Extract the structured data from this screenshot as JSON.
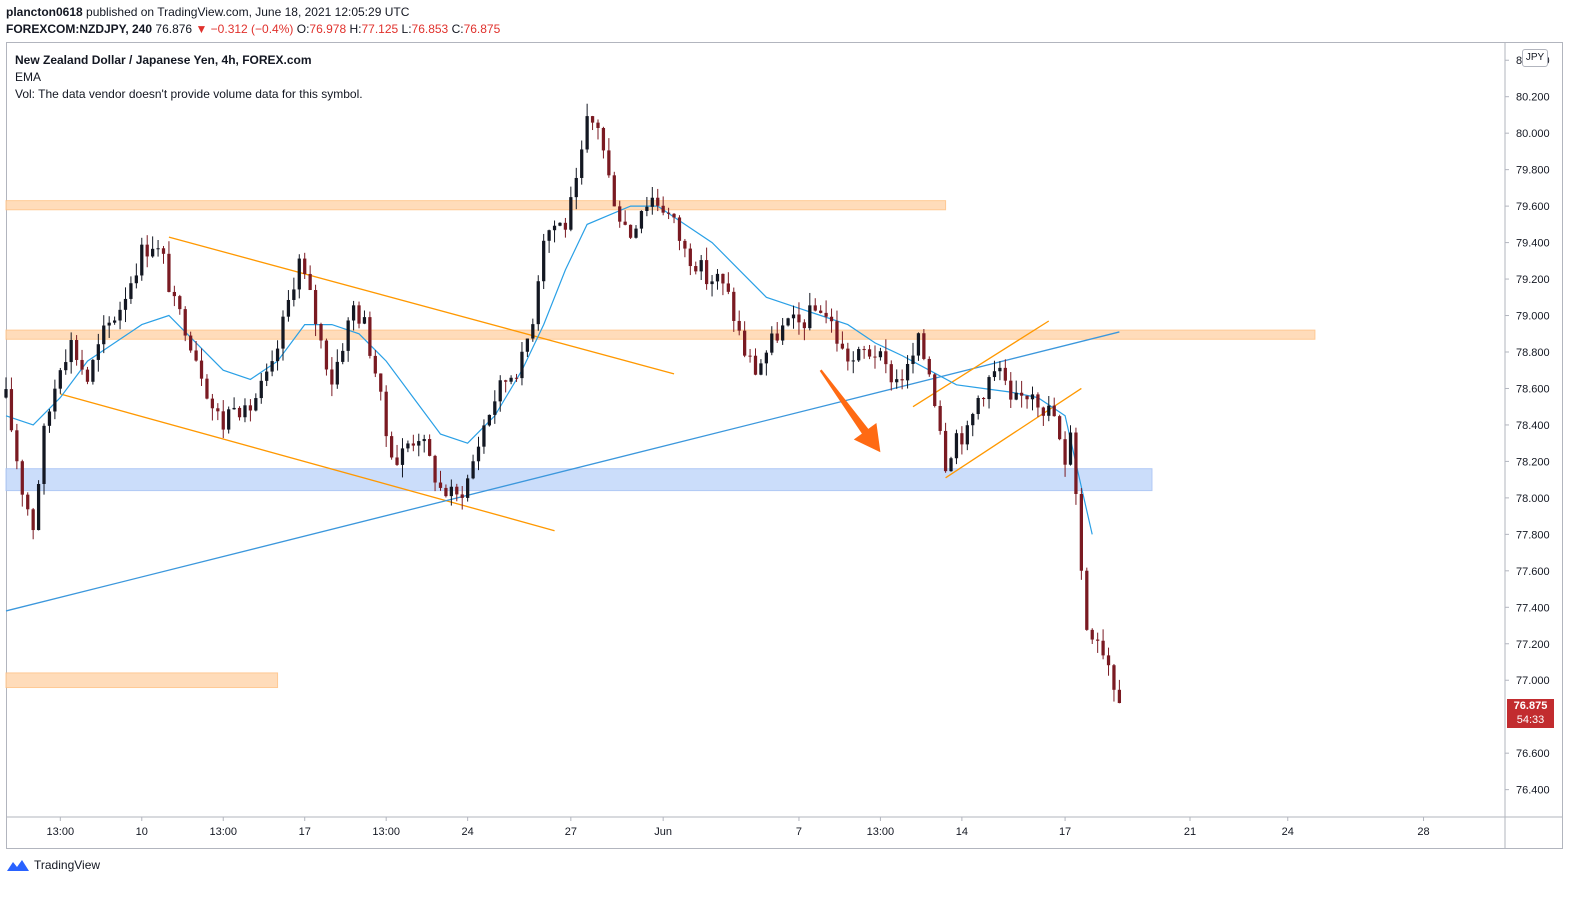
{
  "header": {
    "user": "plancton0618",
    "published_text": " published on TradingView.com, June 18, 2021 12:05:29 UTC",
    "symbol": "FOREXCOM:NZDJPY, 240",
    "last": "76.876",
    "change": "−0.312 (−0.4%)",
    "o_label": "O:",
    "o_value": "76.978",
    "h_label": "H:",
    "h_value": "77.125",
    "l_label": "L:",
    "l_value": "76.853",
    "c_label": "C:",
    "c_value": "76.875"
  },
  "legend": {
    "title": "New Zealand Dollar / Japanese Yen, 4h, FOREX.com",
    "indicator": "EMA",
    "volume_note": "Vol: The data vendor doesn't provide volume data for this symbol."
  },
  "currency_badge": "JPY",
  "last_price_label": {
    "price": "76.875",
    "countdown": "54:33"
  },
  "footer": {
    "brand": "TradingView"
  },
  "colors": {
    "bull": "#131722",
    "bear": "#7a1a22",
    "ema": "#2aa0e6",
    "trendline_orange": "#ff9800",
    "trendline_blue": "#3b97dc",
    "zone_orange": "#ffd9b3",
    "zone_blue": "#c6dafa",
    "arrow": "#ff6a13",
    "last_price_bg": "#c22c2f"
  },
  "chart_data": {
    "type": "candlestick",
    "symbol": "NZDJPY",
    "timeframe": "4h",
    "ylim": [
      76.25,
      80.5
    ],
    "yticks": [
      76.4,
      76.6,
      77.0,
      77.2,
      77.4,
      77.6,
      77.8,
      78.0,
      78.2,
      78.4,
      78.6,
      78.8,
      79.0,
      79.2,
      79.4,
      79.6,
      79.8,
      80.0,
      80.2,
      80.4
    ],
    "ytick_labels": [
      "76.400",
      "76.600",
      "77.000",
      "77.200",
      "77.400",
      "77.600",
      "77.800",
      "78.000",
      "78.200",
      "78.400",
      "78.600",
      "78.800",
      "79.000",
      "79.200",
      "79.400",
      "79.600",
      "79.800",
      "80.000",
      "80.200",
      "80.400"
    ],
    "xlim": [
      0,
      276
    ],
    "xticks": [
      {
        "pos": 10,
        "label": "13:00"
      },
      {
        "pos": 25,
        "label": "10"
      },
      {
        "pos": 40,
        "label": "13:00"
      },
      {
        "pos": 55,
        "label": "17"
      },
      {
        "pos": 70,
        "label": "13:00"
      },
      {
        "pos": 85,
        "label": "24"
      },
      {
        "pos": 104,
        "label": "27"
      },
      {
        "pos": 121,
        "label": "Jun"
      },
      {
        "pos": 146,
        "label": "7"
      },
      {
        "pos": 161,
        "label": "13:00"
      },
      {
        "pos": 176,
        "label": "14"
      },
      {
        "pos": 195,
        "label": "17"
      },
      {
        "pos": 218,
        "label": "21"
      },
      {
        "pos": 236,
        "label": "24"
      },
      {
        "pos": 261,
        "label": "28"
      }
    ],
    "anchors": [
      [
        0,
        78.55
      ],
      [
        3,
        78.05
      ],
      [
        5,
        77.85
      ],
      [
        7,
        78.35
      ],
      [
        10,
        78.75
      ],
      [
        12,
        78.85
      ],
      [
        15,
        78.65
      ],
      [
        18,
        78.9
      ],
      [
        21,
        79.05
      ],
      [
        23,
        79.2
      ],
      [
        25,
        79.35
      ],
      [
        27,
        79.4
      ],
      [
        29,
        79.3
      ],
      [
        31,
        79.05
      ],
      [
        33,
        78.95
      ],
      [
        36,
        78.7
      ],
      [
        38,
        78.5
      ],
      [
        40,
        78.4
      ],
      [
        42,
        78.55
      ],
      [
        44,
        78.45
      ],
      [
        47,
        78.6
      ],
      [
        49,
        78.7
      ],
      [
        51,
        78.95
      ],
      [
        53,
        79.2
      ],
      [
        54,
        79.3
      ],
      [
        56,
        79.1
      ],
      [
        58,
        78.85
      ],
      [
        60,
        78.65
      ],
      [
        62,
        78.85
      ],
      [
        64,
        79.05
      ],
      [
        66,
        78.95
      ],
      [
        68,
        78.7
      ],
      [
        70,
        78.35
      ],
      [
        72,
        78.2
      ],
      [
        74,
        78.3
      ],
      [
        76,
        78.35
      ],
      [
        78,
        78.2
      ],
      [
        80,
        78.05
      ],
      [
        83,
        78.0
      ],
      [
        85,
        78.1
      ],
      [
        88,
        78.4
      ],
      [
        90,
        78.55
      ],
      [
        92,
        78.65
      ],
      [
        95,
        78.75
      ],
      [
        97,
        79.0
      ],
      [
        99,
        79.45
      ],
      [
        101,
        79.5
      ],
      [
        103,
        79.5
      ],
      [
        105,
        79.7
      ],
      [
        107,
        80.05
      ],
      [
        109,
        80.05
      ],
      [
        111,
        79.75
      ],
      [
        113,
        79.55
      ],
      [
        115,
        79.45
      ],
      [
        117,
        79.6
      ],
      [
        119,
        79.65
      ],
      [
        121,
        79.6
      ],
      [
        123,
        79.5
      ],
      [
        125,
        79.35
      ],
      [
        127,
        79.3
      ],
      [
        129,
        79.2
      ],
      [
        131,
        79.2
      ],
      [
        133,
        79.1
      ],
      [
        136,
        78.8
      ],
      [
        138,
        78.7
      ],
      [
        140,
        78.8
      ],
      [
        142,
        78.9
      ],
      [
        144,
        78.95
      ],
      [
        146,
        78.95
      ],
      [
        148,
        79.0
      ],
      [
        150,
        79.05
      ],
      [
        152,
        78.95
      ],
      [
        154,
        78.8
      ],
      [
        156,
        78.75
      ],
      [
        158,
        78.8
      ],
      [
        160,
        78.8
      ],
      [
        162,
        78.7
      ],
      [
        164,
        78.65
      ],
      [
        166,
        78.7
      ],
      [
        168,
        78.85
      ],
      [
        170,
        78.7
      ],
      [
        171,
        78.55
      ],
      [
        172,
        78.4
      ],
      [
        173,
        78.2
      ],
      [
        175,
        78.35
      ],
      [
        177,
        78.35
      ],
      [
        179,
        78.55
      ],
      [
        181,
        78.65
      ],
      [
        183,
        78.7
      ],
      [
        185,
        78.5
      ],
      [
        187,
        78.55
      ],
      [
        189,
        78.6
      ],
      [
        191,
        78.5
      ],
      [
        193,
        78.45
      ],
      [
        194,
        78.3
      ],
      [
        195,
        78.15
      ],
      [
        196,
        78.4
      ],
      [
        197,
        78.05
      ],
      [
        198,
        77.6
      ],
      [
        199,
        77.3
      ],
      [
        201,
        77.25
      ],
      [
        203,
        77.1
      ],
      [
        205,
        76.875
      ]
    ],
    "ema_line": [
      [
        0,
        78.45
      ],
      [
        5,
        78.4
      ],
      [
        10,
        78.55
      ],
      [
        15,
        78.75
      ],
      [
        20,
        78.85
      ],
      [
        25,
        78.95
      ],
      [
        30,
        79.0
      ],
      [
        35,
        78.85
      ],
      [
        40,
        78.7
      ],
      [
        45,
        78.65
      ],
      [
        50,
        78.75
      ],
      [
        55,
        78.95
      ],
      [
        60,
        78.95
      ],
      [
        65,
        78.9
      ],
      [
        70,
        78.75
      ],
      [
        75,
        78.55
      ],
      [
        80,
        78.35
      ],
      [
        85,
        78.3
      ],
      [
        90,
        78.45
      ],
      [
        95,
        78.7
      ],
      [
        99,
        78.95
      ],
      [
        103,
        79.25
      ],
      [
        107,
        79.5
      ],
      [
        111,
        79.55
      ],
      [
        115,
        79.6
      ],
      [
        120,
        79.6
      ],
      [
        125,
        79.5
      ],
      [
        130,
        79.4
      ],
      [
        135,
        79.25
      ],
      [
        140,
        79.1
      ],
      [
        145,
        79.05
      ],
      [
        150,
        79.0
      ],
      [
        155,
        78.95
      ],
      [
        160,
        78.85
      ],
      [
        165,
        78.78
      ],
      [
        170,
        78.7
      ],
      [
        175,
        78.62
      ],
      [
        180,
        78.6
      ],
      [
        185,
        78.58
      ],
      [
        190,
        78.55
      ],
      [
        195,
        78.45
      ],
      [
        200,
        77.8
      ]
    ],
    "zones": [
      {
        "x0": 0,
        "x1": 173,
        "y0": 79.58,
        "y1": 79.63,
        "color": "orange"
      },
      {
        "x0": 0,
        "x1": 241,
        "y0": 78.87,
        "y1": 78.92,
        "color": "orange"
      },
      {
        "x0": 0,
        "x1": 211,
        "y0": 78.04,
        "y1": 78.16,
        "color": "blue"
      },
      {
        "x0": 0,
        "x1": 50,
        "y0": 76.96,
        "y1": 77.04,
        "color": "orange"
      }
    ],
    "trendlines": [
      {
        "x0": 30,
        "y0": 79.43,
        "x1": 123,
        "y1": 78.68,
        "color": "orange"
      },
      {
        "x0": 10,
        "y0": 78.57,
        "x1": 101,
        "y1": 77.82,
        "color": "orange"
      },
      {
        "x0": 0,
        "y0": 77.38,
        "x1": 205,
        "y1": 78.91,
        "color": "blue"
      },
      {
        "x0": 167,
        "y0": 78.5,
        "x1": 192,
        "y1": 78.97,
        "color": "orange"
      },
      {
        "x0": 173,
        "y0": 78.11,
        "x1": 198,
        "y1": 78.6,
        "color": "orange"
      }
    ],
    "arrow": {
      "x0": 150,
      "y0": 78.7,
      "x1": 161,
      "y1": 78.25
    }
  }
}
